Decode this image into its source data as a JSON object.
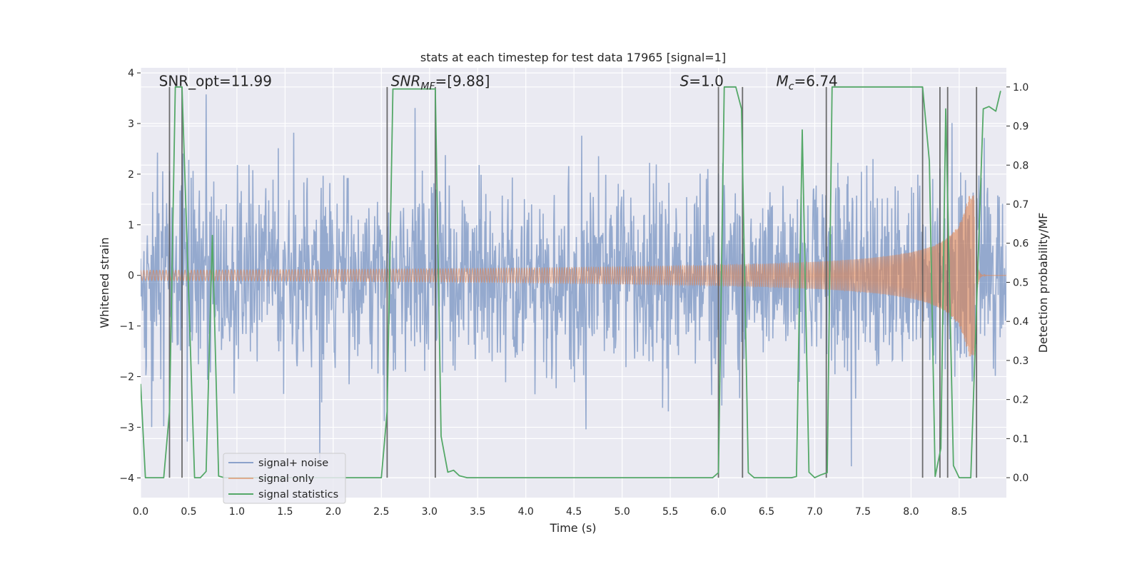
{
  "chart_data": {
    "type": "line",
    "title": "stats at each timestep for test data 17965 [signal=1]",
    "xlabel": "Time (s)",
    "ylabel": "Whitened strain",
    "ylabel_right": "Detection probability/MF",
    "xlim": [
      0,
      8.99
    ],
    "ylim": [
      -4.39,
      4.1
    ],
    "ylim_right": [
      -0.051,
      1.049
    ],
    "xticks": [
      0,
      0.5,
      1,
      1.5,
      2,
      2.5,
      3,
      3.5,
      4,
      4.5,
      5,
      5.5,
      6,
      6.5,
      7,
      7.5,
      8,
      8.5
    ],
    "xtick_labels": [
      "0.0",
      "0.5",
      "1.0",
      "1.5",
      "2.0",
      "2.5",
      "3.0",
      "3.5",
      "4.0",
      "4.5",
      "5.0",
      "5.5",
      "6.0",
      "6.5",
      "7.0",
      "7.5",
      "8.0",
      "8.5"
    ],
    "yticks": [
      -4,
      -3,
      -2,
      -1,
      0,
      1,
      2,
      3,
      4
    ],
    "ytick_labels": [
      "−4",
      "−3",
      "−2",
      "−1",
      "0",
      "1",
      "2",
      "3",
      "4"
    ],
    "yticks_right": [
      0,
      0.1,
      0.2,
      0.3,
      0.4,
      0.5,
      0.6,
      0.7,
      0.8,
      0.9,
      1.0
    ],
    "ytick_labels_right": [
      "0.0",
      "0.1",
      "0.2",
      "0.3",
      "0.4",
      "0.5",
      "0.6",
      "0.7",
      "0.8",
      "0.9",
      "1.0"
    ],
    "grid": true,
    "legend": {
      "placement": "lower-left",
      "entries": [
        {
          "label": "signal+ noise",
          "color": "#4c72b0"
        },
        {
          "label": "signal only",
          "color": "#dd8452"
        },
        {
          "label": "signal statistics",
          "color": "#55a868"
        }
      ]
    },
    "series": [
      {
        "name": "signal+ noise",
        "axis": "left",
        "color": "#4c72b0",
        "kind": "gaussian_noise_plus_signal",
        "noise_std": 0.95,
        "sample_rate": 200,
        "seed": 17965
      },
      {
        "name": "signal only",
        "axis": "left",
        "color": "#dd8452",
        "kind": "chirp",
        "merger_time": 8.68,
        "peak_amplitude": 1.6,
        "start_amplitude": 0.1
      },
      {
        "name": "signal statistics",
        "axis": "right",
        "color": "#55a868",
        "x": [
          0,
          0.05,
          0.24,
          0.3,
          0.36,
          0.43,
          0.56,
          0.62,
          0.68,
          0.745,
          0.81,
          0.87,
          2.5,
          2.56,
          2.62,
          3.06,
          3.12,
          3.19,
          3.25,
          3.31,
          3.39,
          5.94,
          6.0,
          6.06,
          6.18,
          6.24,
          6.31,
          6.37,
          6.76,
          6.81,
          6.87,
          6.94,
          7.0,
          7.06,
          7.13,
          7.18,
          8.12,
          8.19,
          8.25,
          8.31,
          8.36,
          8.44,
          8.5,
          8.62,
          8.69,
          8.75,
          8.81,
          8.88,
          8.93
        ],
        "y": [
          0.24,
          0,
          0,
          0.17,
          1.0,
          1.0,
          0,
          0,
          0.016,
          0.62,
          0.004,
          0,
          0,
          0.17,
          0.995,
          0.995,
          0.106,
          0.014,
          0.019,
          0.005,
          0,
          0,
          0.013,
          1.0,
          1.0,
          0.944,
          0.013,
          0,
          0,
          0.003,
          0.89,
          0.014,
          0,
          0.007,
          0.013,
          1.0,
          1.0,
          0.81,
          0.003,
          0.075,
          0.944,
          0.031,
          0,
          0,
          0.51,
          0.944,
          0.95,
          0.938,
          0.99
        ]
      }
    ],
    "vlines": {
      "color": "#555555",
      "axis": "right",
      "ymin": 0,
      "ymax": 1,
      "x": [
        0.3,
        0.43,
        2.56,
        3.06,
        6.0,
        6.25,
        7.12,
        8.12,
        8.3,
        8.38,
        8.68
      ]
    },
    "annotations": [
      {
        "x": 0.19,
        "y": 1.015,
        "main": "SNR_opt=11.99",
        "sub": "",
        "rest": "",
        "italic": false
      },
      {
        "x": 2.6,
        "y": 1.015,
        "main": "SNR",
        "sub": "MF",
        "rest": "=[9.88]",
        "italic": true
      },
      {
        "x": 5.6,
        "y": 1.015,
        "main": "S",
        "sub": "",
        "rest": "=1.0",
        "italic": true
      },
      {
        "x": 6.6,
        "y": 1.015,
        "main": "M",
        "sub": "c",
        "rest": "=6.74",
        "italic": true
      }
    ]
  }
}
